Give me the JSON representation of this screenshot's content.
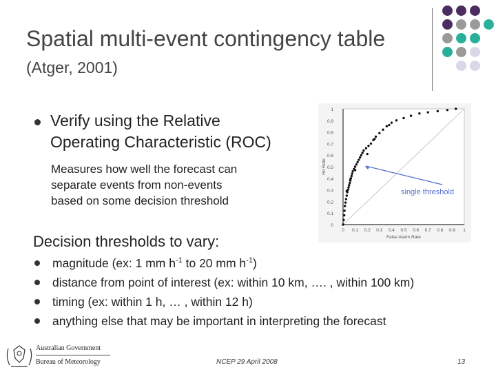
{
  "slide": {
    "title": "Spatial multi-event contingency table",
    "subtitle": "(Atger, 2001)",
    "bullet1": {
      "line1": "Verify using the Relative",
      "line2": "Operating Characteristic (ROC)"
    },
    "subtext": {
      "line1": "Measures how well the forecast can",
      "line2": "separate events from non-events",
      "line3": "based on some decision threshold"
    },
    "thresholds_heading": "Decision thresholds to vary:",
    "items": {
      "magnitude": {
        "pre": "magnitude (ex: 1 mm h",
        "sup1": "-1",
        "mid": " to 20 mm h",
        "sup2": "-1",
        "post": ")"
      },
      "distance": "distance from point of interest (ex: within 10 km, …. , within 100 km)",
      "timing": "timing (ex: within 1 h, … , within 12 h)",
      "other": "anything else that may be important in interpreting the forecast"
    },
    "footer": "NCEP 29 April 2008",
    "page_number": "13",
    "logo": {
      "line1": "Australian Government",
      "line2": "Bureau of Meteorology"
    },
    "accent_colors": {
      "purple": "#4b2d5f",
      "gray": "#9a9a9a",
      "teal": "#2ab09a",
      "light": "#d8d8e6"
    }
  },
  "chart_data": {
    "type": "scatter",
    "xlabel": "False Alarm Rate",
    "ylabel": "Hit Rate",
    "xlim": [
      0,
      1
    ],
    "ylim": [
      0,
      1
    ],
    "xticks": [
      "0",
      "0.1",
      "0.2",
      "0.3",
      "0.4",
      "0.5",
      "0.6",
      "0.7",
      "0.8",
      "0.9",
      "1"
    ],
    "yticks": [
      "0",
      "0.1",
      "0.2",
      "0.3",
      "0.4",
      "0.5",
      "0.6",
      "0.7",
      "0.8",
      "0.9",
      "1"
    ],
    "diagonal": true,
    "annotation": "single threshold",
    "annotation_point": [
      0.17,
      0.5
    ],
    "points": [
      [
        0.0,
        0.0
      ],
      [
        0.005,
        0.04
      ],
      [
        0.01,
        0.08
      ],
      [
        0.012,
        0.12
      ],
      [
        0.015,
        0.16
      ],
      [
        0.02,
        0.19
      ],
      [
        0.025,
        0.22
      ],
      [
        0.03,
        0.25
      ],
      [
        0.035,
        0.28
      ],
      [
        0.04,
        0.3
      ],
      [
        0.045,
        0.32
      ],
      [
        0.05,
        0.34
      ],
      [
        0.055,
        0.36
      ],
      [
        0.06,
        0.38
      ],
      [
        0.065,
        0.4
      ],
      [
        0.07,
        0.42
      ],
      [
        0.075,
        0.44
      ],
      [
        0.08,
        0.46
      ],
      [
        0.09,
        0.48
      ],
      [
        0.1,
        0.5
      ],
      [
        0.11,
        0.52
      ],
      [
        0.12,
        0.54
      ],
      [
        0.13,
        0.56
      ],
      [
        0.14,
        0.58
      ],
      [
        0.15,
        0.6
      ],
      [
        0.16,
        0.62
      ],
      [
        0.17,
        0.64
      ],
      [
        0.19,
        0.66
      ],
      [
        0.21,
        0.68
      ],
      [
        0.23,
        0.7
      ],
      [
        0.25,
        0.73
      ],
      [
        0.27,
        0.76
      ],
      [
        0.3,
        0.79
      ],
      [
        0.33,
        0.82
      ],
      [
        0.36,
        0.85
      ],
      [
        0.4,
        0.88
      ],
      [
        0.44,
        0.9
      ],
      [
        0.5,
        0.92
      ],
      [
        0.56,
        0.94
      ],
      [
        0.63,
        0.96
      ],
      [
        0.7,
        0.97
      ],
      [
        0.78,
        0.98
      ],
      [
        0.86,
        0.99
      ],
      [
        0.93,
        1.0
      ],
      [
        0.03,
        0.29
      ],
      [
        0.06,
        0.39
      ],
      [
        0.1,
        0.47
      ],
      [
        0.2,
        0.61
      ],
      [
        0.26,
        0.74
      ],
      [
        0.38,
        0.86
      ]
    ]
  }
}
